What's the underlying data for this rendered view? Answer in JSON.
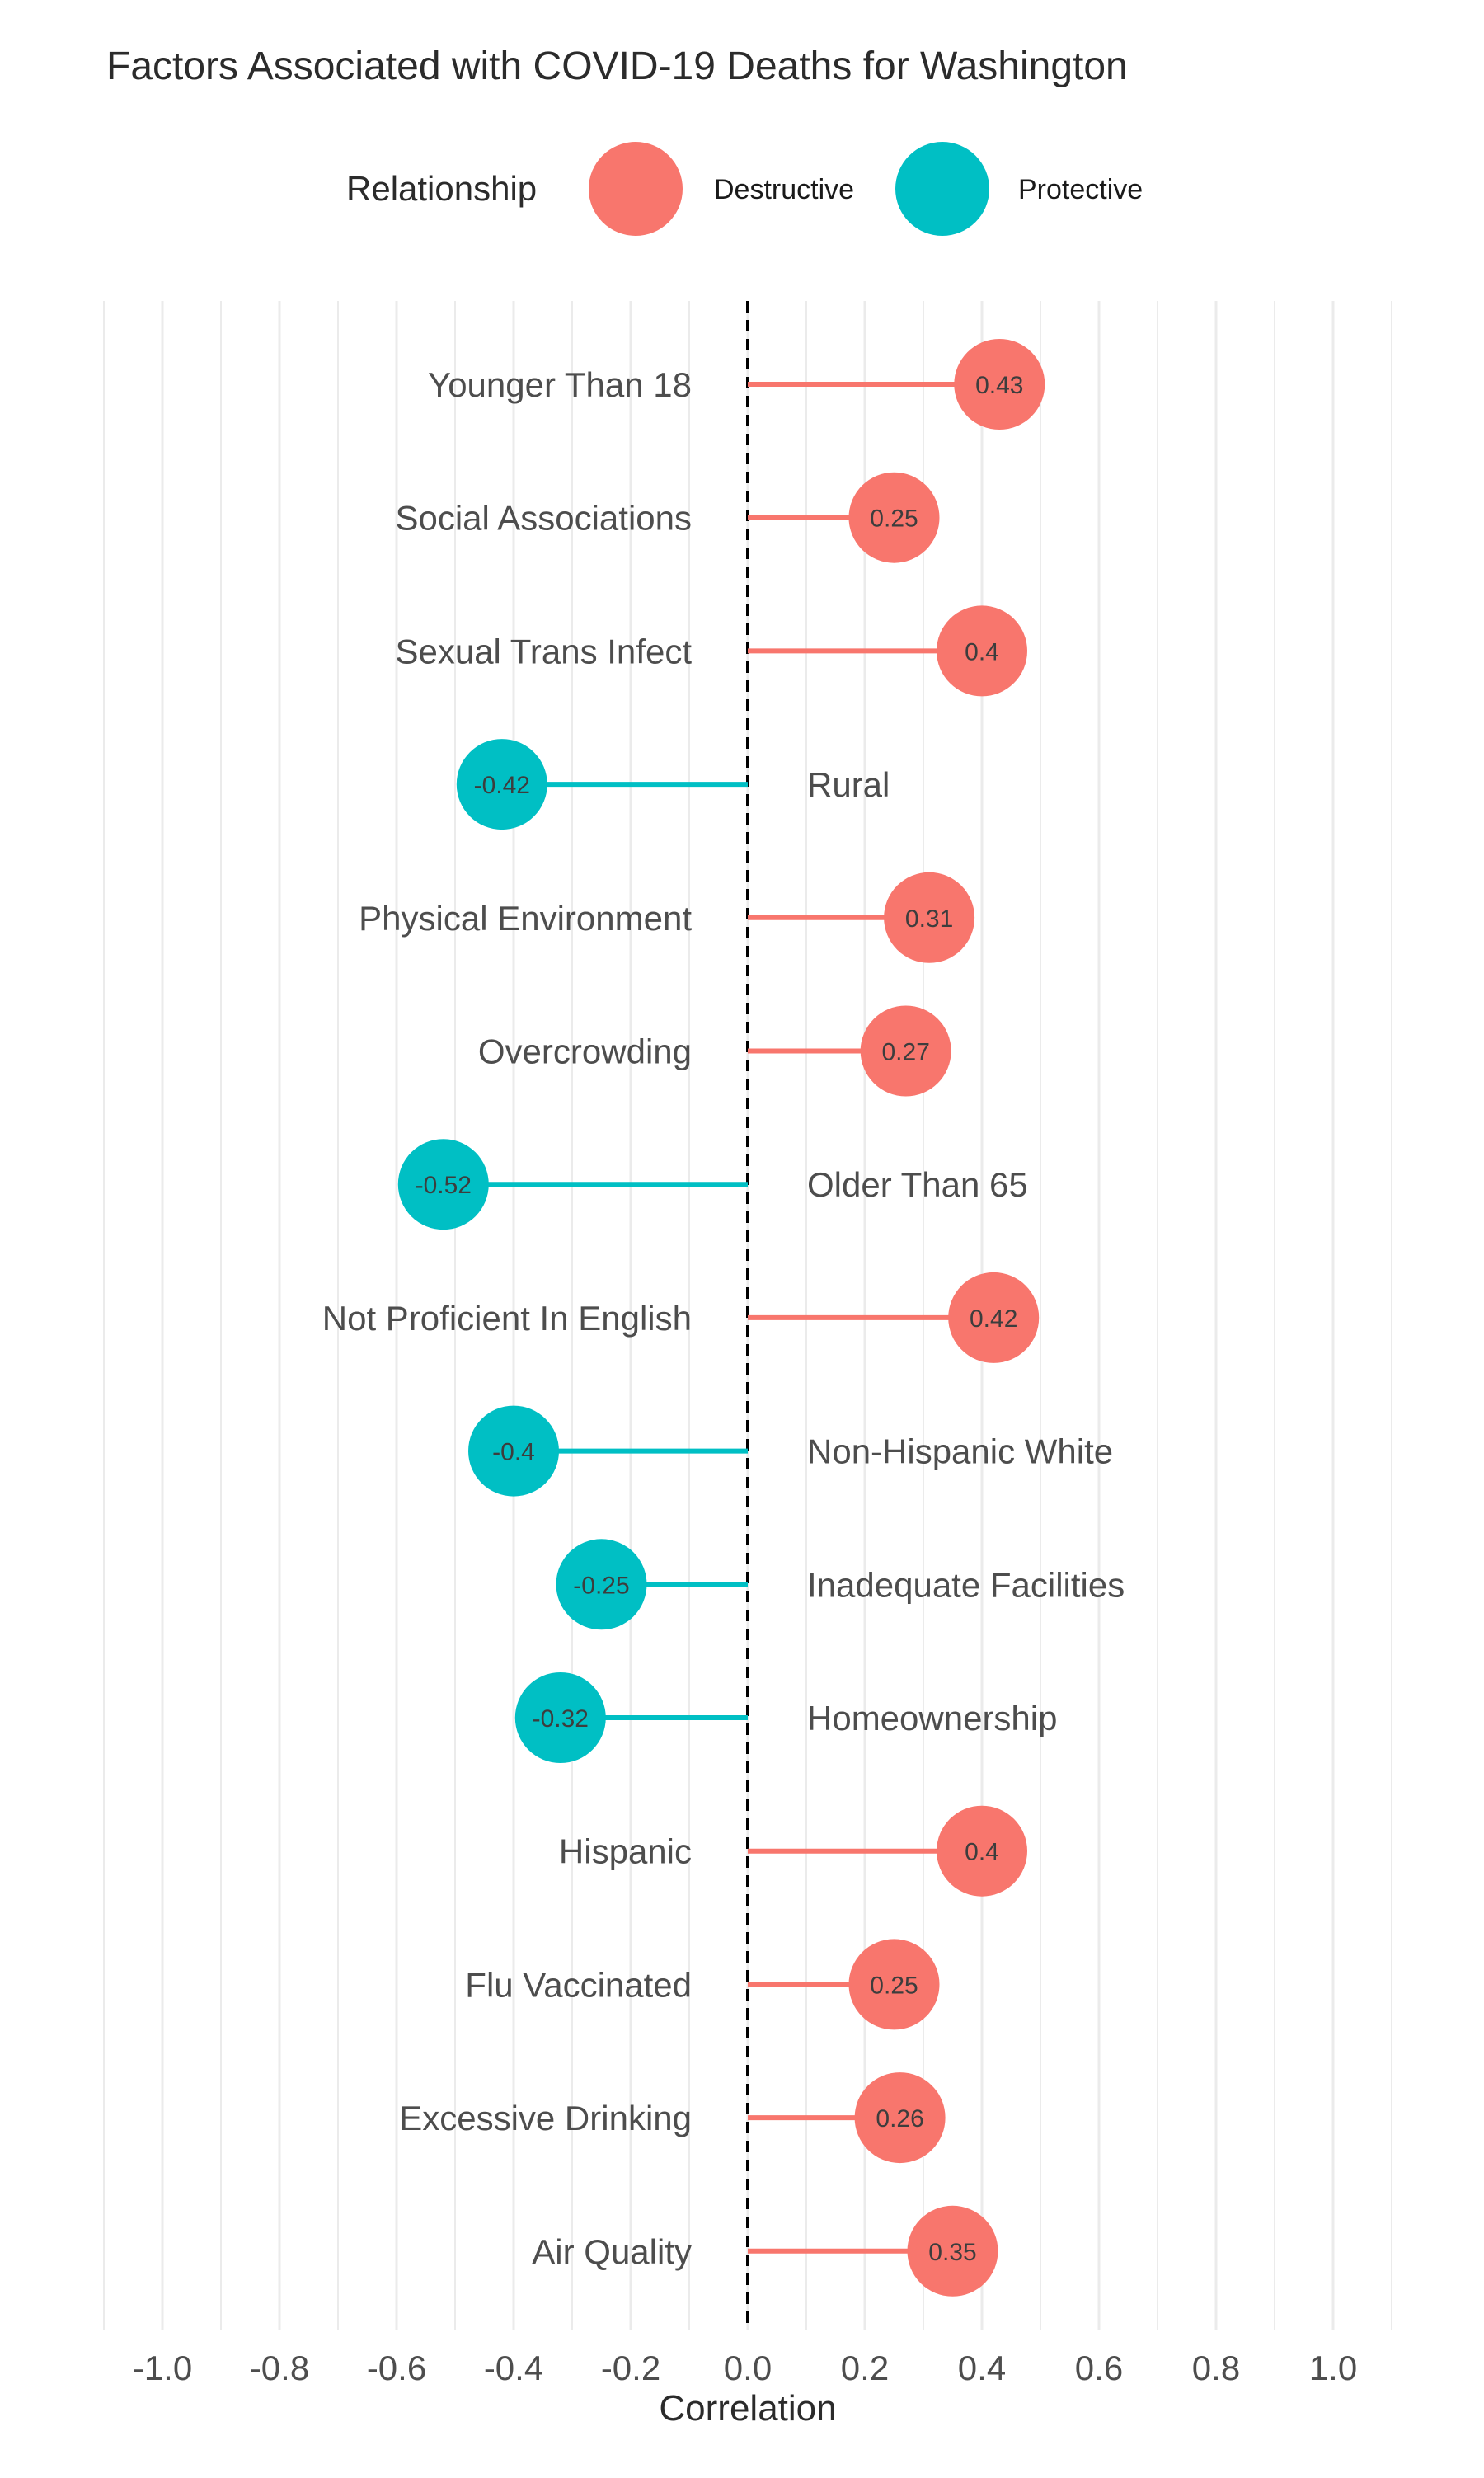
{
  "chart_data": {
    "type": "lollipop",
    "title": "Factors Associated with COVID-19 Deaths for Washington",
    "xlabel": "Correlation",
    "ylabel": "",
    "xlim": [
      -1.1,
      1.1
    ],
    "x_ticks": [
      -1.0,
      -0.8,
      -0.6,
      -0.4,
      -0.2,
      0.0,
      0.2,
      0.4,
      0.6,
      0.8,
      1.0
    ],
    "x_tick_labels": [
      "-1.0",
      "-0.8",
      "-0.6",
      "-0.4",
      "-0.2",
      "0.0",
      "0.2",
      "0.4",
      "0.6",
      "0.8",
      "1.0"
    ],
    "grid": "vertical",
    "reference_line": 0.0,
    "legend": {
      "title": "Relationship",
      "position": "top",
      "entries": [
        {
          "label": "Destructive",
          "color": "#F8766D"
        },
        {
          "label": "Protective",
          "color": "#00BFC4"
        }
      ]
    },
    "categories": [
      "Younger Than 18",
      "Social Associations",
      "Sexual Trans Infect",
      "Rural",
      "Physical Environment",
      "Overcrowding",
      "Older Than 65",
      "Not Proficient In English",
      "Non-Hispanic White",
      "Inadequate Facilities",
      "Homeownership",
      "Hispanic",
      "Flu Vaccinated",
      "Excessive Drinking",
      "Air Quality"
    ],
    "values": [
      0.43,
      0.25,
      0.4,
      -0.42,
      0.31,
      0.27,
      -0.52,
      0.42,
      -0.4,
      -0.25,
      -0.32,
      0.4,
      0.25,
      0.26,
      0.35
    ],
    "value_labels": [
      "0.43",
      "0.25",
      "0.4",
      "-0.42",
      "0.31",
      "0.27",
      "-0.52",
      "0.42",
      "-0.4",
      "-0.25",
      "-0.32",
      "0.4",
      "0.25",
      "0.26",
      "0.35"
    ],
    "relationship": [
      "Destructive",
      "Destructive",
      "Destructive",
      "Protective",
      "Destructive",
      "Destructive",
      "Protective",
      "Destructive",
      "Protective",
      "Protective",
      "Protective",
      "Destructive",
      "Destructive",
      "Destructive",
      "Destructive"
    ]
  }
}
